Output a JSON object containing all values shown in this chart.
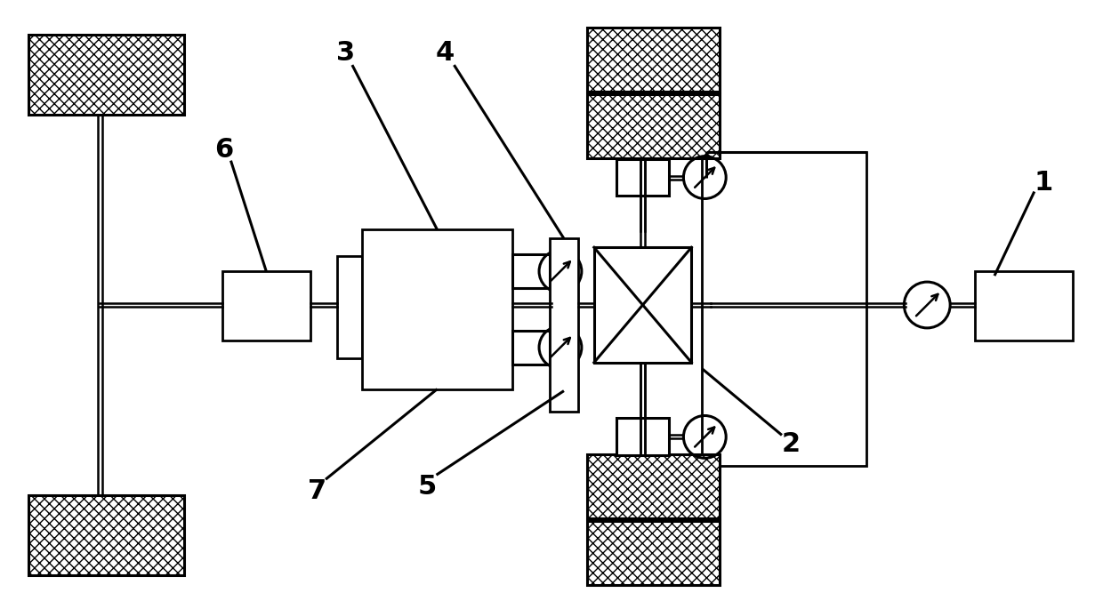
{
  "bg_color": "#ffffff",
  "line_color": "#000000",
  "lw": 2.2,
  "lw_thin": 1.8,
  "fig_width": 12.4,
  "fig_height": 6.85,
  "dpi": 100
}
